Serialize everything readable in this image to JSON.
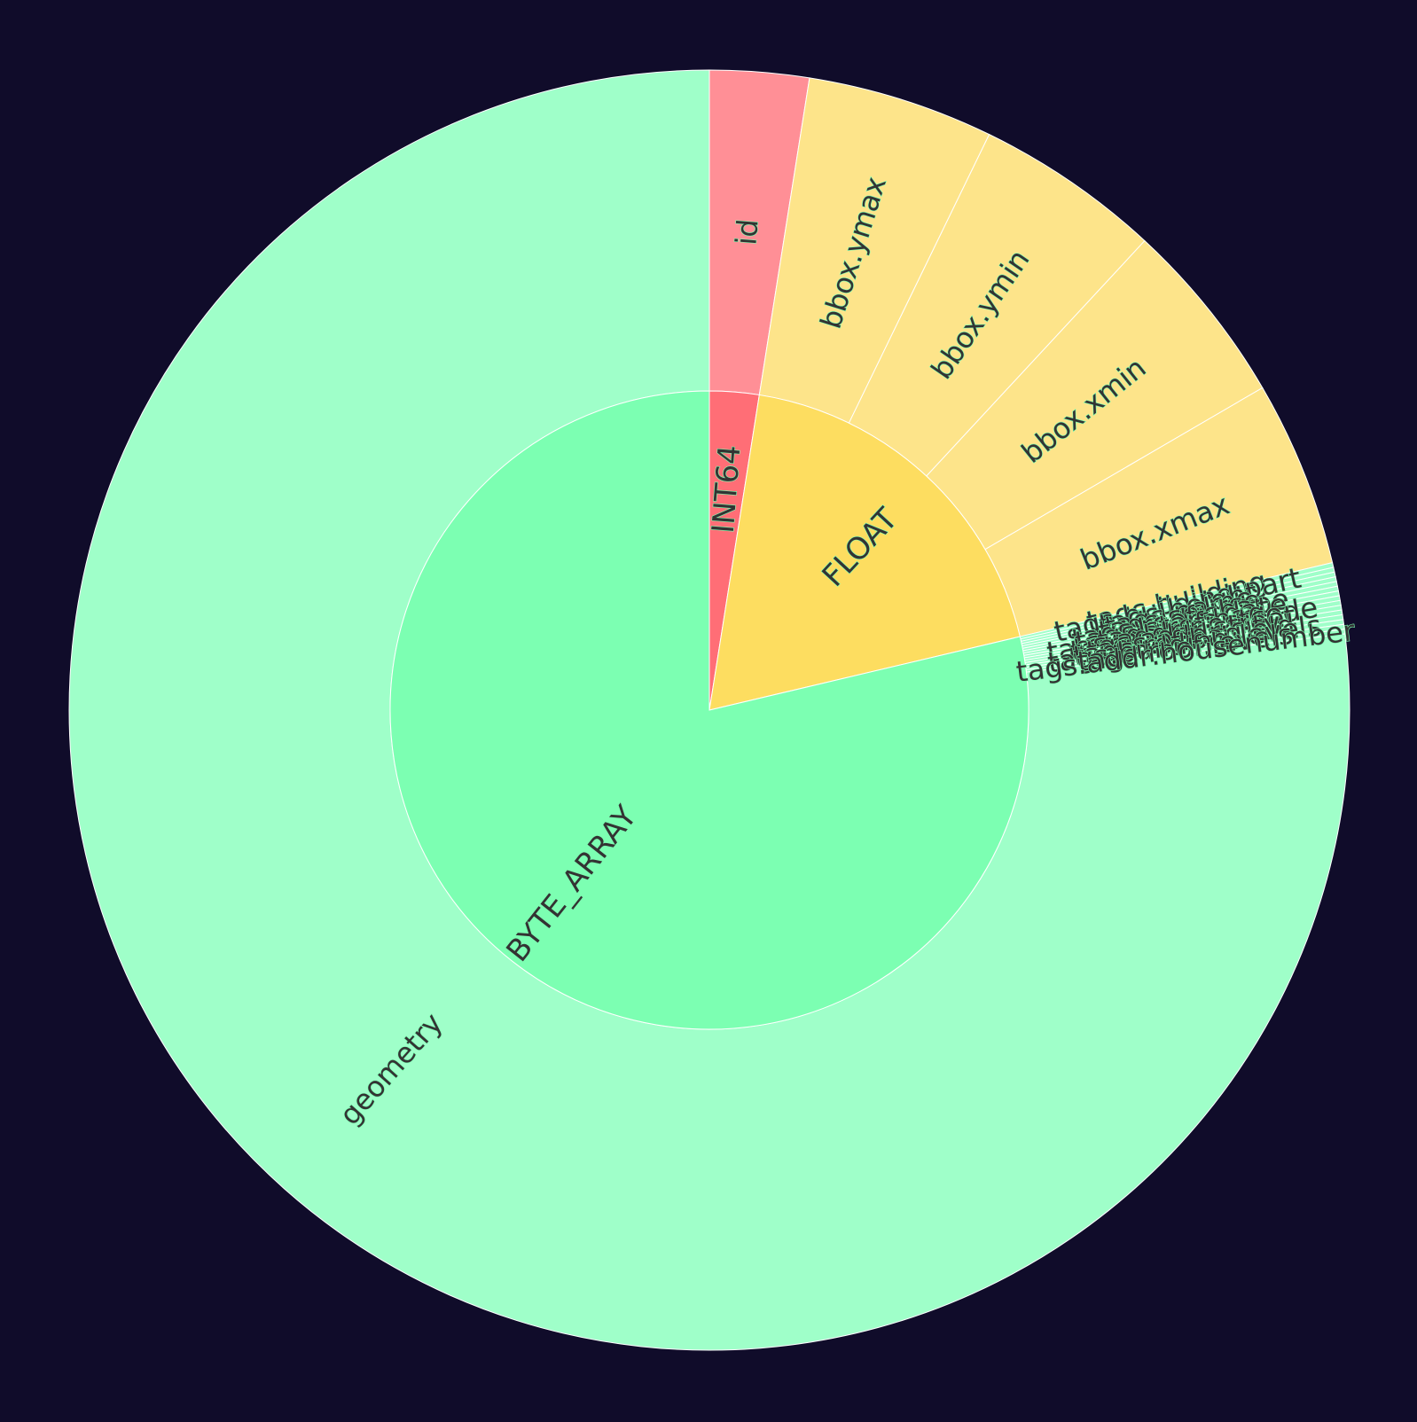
{
  "chart_data": {
    "type": "sunburst",
    "background": "#100c2a",
    "start": "12 o'clock",
    "direction": "clockwise",
    "inner_ring": [
      {
        "label": "INT64",
        "value": 2.5,
        "color": "#ff6e76"
      },
      {
        "label": "FLOAT",
        "value": 18.8,
        "color": "#fddd60"
      },
      {
        "label": "BYTE_ARRAY",
        "value": 78.7,
        "color": "#7cffb2"
      }
    ],
    "outer_ring": [
      {
        "label": "id",
        "parent": "INT64",
        "value": 2.5,
        "color": "#ff8f96"
      },
      {
        "label": "bbox.ymax",
        "parent": "FLOAT",
        "value": 4.7,
        "color": "#fde48a"
      },
      {
        "label": "bbox.ymin",
        "parent": "FLOAT",
        "value": 4.7,
        "color": "#fde48a"
      },
      {
        "label": "bbox.xmin",
        "parent": "FLOAT",
        "value": 4.7,
        "color": "#fde48a"
      },
      {
        "label": "bbox.xmax",
        "parent": "FLOAT",
        "value": 4.7,
        "color": "#fde48a"
      },
      {
        "label": "tags.building",
        "parent": "BYTE_ARRAY",
        "value": 0.12,
        "color": "#9fffc9"
      },
      {
        "label": "tags.building:part",
        "parent": "BYTE_ARRAY",
        "value": 0.12,
        "color": "#9fffc9"
      },
      {
        "label": "tags.height",
        "parent": "BYTE_ARRAY",
        "value": 0.12,
        "color": "#9fffc9"
      },
      {
        "label": "tags.name",
        "parent": "BYTE_ARRAY",
        "value": 0.12,
        "color": "#9fffc9"
      },
      {
        "label": "tags.source",
        "parent": "BYTE_ARRAY",
        "value": 0.12,
        "color": "#9fffc9"
      },
      {
        "label": "tags.roof:shape",
        "parent": "BYTE_ARRAY",
        "value": 0.12,
        "color": "#9fffc9"
      },
      {
        "label": "tags.start_date",
        "parent": "BYTE_ARRAY",
        "value": 0.12,
        "color": "#9fffc9"
      },
      {
        "label": "tags.ref:bag",
        "parent": "BYTE_ARRAY",
        "value": 0.12,
        "color": "#9fffc9"
      },
      {
        "label": "tags.addr:postcode",
        "parent": "BYTE_ARRAY",
        "value": 0.12,
        "color": "#9fffc9"
      },
      {
        "label": "tags.addr:street",
        "parent": "BYTE_ARRAY",
        "value": 0.12,
        "color": "#9fffc9"
      },
      {
        "label": "tags.addr:city",
        "parent": "BYTE_ARRAY",
        "value": 0.12,
        "color": "#9fffc9"
      },
      {
        "label": "tags.ref:bag:old",
        "parent": "BYTE_ARRAY",
        "value": 0.12,
        "color": "#9fffc9"
      },
      {
        "label": "tags.building:levels",
        "parent": "BYTE_ARRAY",
        "value": 0.12,
        "color": "#9fffc9"
      },
      {
        "label": "tags.roof:levels",
        "parent": "BYTE_ARRAY",
        "value": 0.12,
        "color": "#9fffc9"
      },
      {
        "label": "tags.addr:housenumber",
        "parent": "BYTE_ARRAY",
        "value": 0.12,
        "color": "#9fffc9"
      },
      {
        "label": "geometry",
        "parent": "BYTE_ARRAY",
        "value": 76.9,
        "color": "#9fffc9"
      }
    ]
  }
}
